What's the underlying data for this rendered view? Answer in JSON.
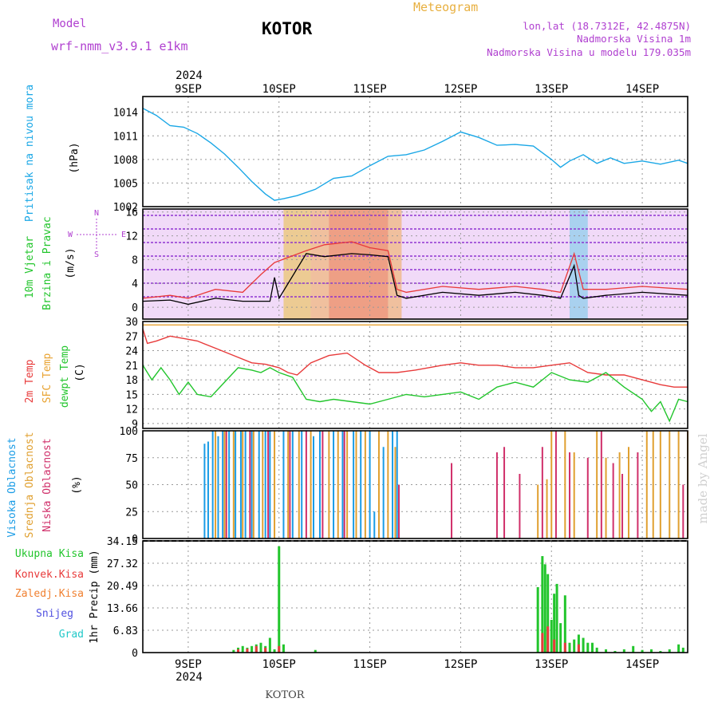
{
  "header": {
    "model_label": "Model",
    "model_name": "wrf-nmm_v3.9.1 e1km",
    "station": "KOTOR",
    "meteogram": "Meteogram",
    "lonlat": "lon,lat (18.7312E, 42.4875N)",
    "elevation": "Nadmorska Visina 1m",
    "model_elevation": "Nadmorska Visina u modelu 179.035m",
    "watermark": "made by Angel",
    "footer_station": "KOTOR"
  },
  "time_axis": {
    "year": "2024",
    "days": [
      "9SEP",
      "10SEP",
      "11SEP",
      "12SEP",
      "13SEP",
      "14SEP"
    ],
    "wind_dir_legend": {
      "n": "N",
      "s": "S",
      "e": "E",
      "w": "W"
    }
  },
  "colors": {
    "pressure": "#1aa7e6",
    "temp2m": "#e83a3a",
    "sfc": "#e8a230",
    "dew": "#22c52c",
    "high_cloud": "#1a9ce6",
    "mid_cloud": "#e0a030",
    "low_cloud": "#d0306a",
    "total_precip": "#22c52c",
    "conv_precip": "#e83a3a",
    "frz_precip": "#f08030",
    "snow": "#5050e0",
    "hail": "#20c8c8",
    "wind_speed": "#000000",
    "wind_gust": "#e83a3a",
    "header_purple": "#b040d0",
    "meteogram_orange": "#e8b040"
  },
  "chart_data": [
    {
      "type": "line",
      "title": "Pritisak na nivou mora",
      "ylabel": "(hPa)",
      "ylim": [
        1002,
        1016
      ],
      "yticks": [
        "1002",
        "1005",
        "1008",
        "1011",
        "1014"
      ],
      "grid": true,
      "x_unit": "days since 9SEP 00Z",
      "series": [
        {
          "name": "Pritisak na nivou mora",
          "x": [
            -0.5,
            -0.35,
            -0.2,
            -0.05,
            0.1,
            0.25,
            0.4,
            0.55,
            0.7,
            0.85,
            0.95,
            1.05,
            1.2,
            1.4,
            1.6,
            1.8,
            2.0,
            2.2,
            2.4,
            2.6,
            2.8,
            3.0,
            3.2,
            3.4,
            3.6,
            3.8,
            4.0,
            4.1,
            4.2,
            4.35,
            4.5,
            4.65,
            4.8,
            5.0,
            5.2,
            5.4,
            5.5
          ],
          "values": [
            1014.5,
            1013.6,
            1012.3,
            1012.1,
            1011.3,
            1010.1,
            1008.7,
            1007.0,
            1005.2,
            1003.6,
            1002.8,
            1003.0,
            1003.4,
            1004.2,
            1005.6,
            1005.9,
            1007.2,
            1008.4,
            1008.6,
            1009.2,
            1010.3,
            1011.5,
            1010.8,
            1009.8,
            1009.9,
            1009.7,
            1008.0,
            1007.0,
            1007.8,
            1008.6,
            1007.5,
            1008.2,
            1007.5,
            1007.8,
            1007.4,
            1007.9,
            1007.5
          ]
        }
      ]
    },
    {
      "type": "line",
      "title": "10m Vjetar Brzina i Pravac",
      "ylabel": "(m/s)",
      "ylim": [
        -2,
        16.5
      ],
      "yticks": [
        "0",
        "4",
        "8",
        "12",
        "16"
      ],
      "grid": true,
      "x_unit": "days since 9SEP 00Z",
      "series": [
        {
          "name": "speed",
          "x": [
            -0.5,
            -0.2,
            0.0,
            0.3,
            0.6,
            0.9,
            0.95,
            1.0,
            1.3,
            1.5,
            1.8,
            2.0,
            2.2,
            2.3,
            2.4,
            2.8,
            3.2,
            3.6,
            3.9,
            4.1,
            4.25,
            4.3,
            4.35,
            4.6,
            5.0,
            5.5
          ],
          "values": [
            1.0,
            1.2,
            0.5,
            1.5,
            1.0,
            1.0,
            5.0,
            1.5,
            9.0,
            8.5,
            9.0,
            8.8,
            8.5,
            2.0,
            1.5,
            2.5,
            2.0,
            2.5,
            2.0,
            1.5,
            7.0,
            2.0,
            1.5,
            2.0,
            2.5,
            2.0
          ]
        },
        {
          "name": "gust",
          "x": [
            -0.5,
            -0.2,
            0.0,
            0.3,
            0.6,
            0.8,
            0.95,
            1.3,
            1.5,
            1.8,
            2.0,
            2.2,
            2.3,
            2.4,
            2.8,
            3.2,
            3.6,
            3.9,
            4.1,
            4.25,
            4.35,
            4.6,
            5.0,
            5.5
          ],
          "values": [
            1.5,
            2.0,
            1.5,
            3.0,
            2.5,
            5.5,
            7.5,
            9.5,
            10.5,
            11.0,
            10.0,
            9.5,
            3.0,
            2.5,
            3.5,
            3.0,
            3.5,
            3.0,
            2.5,
            9.0,
            3.0,
            3.0,
            3.5,
            3.0
          ]
        }
      ]
    },
    {
      "type": "line",
      "title": "2m Temp / SFC Temp / dewpt Temp",
      "ylabel": "(C)",
      "ylim": [
        8,
        30
      ],
      "yticks": [
        "9",
        "12",
        "15",
        "18",
        "21",
        "24",
        "27",
        "30"
      ],
      "grid": true,
      "x_unit": "days since 9SEP 00Z",
      "series": [
        {
          "name": "2m Temp",
          "x": [
            -0.5,
            -0.45,
            -0.35,
            -0.2,
            -0.05,
            0.1,
            0.3,
            0.5,
            0.7,
            0.85,
            1.0,
            1.1,
            1.2,
            1.35,
            1.55,
            1.75,
            1.95,
            2.1,
            2.3,
            2.5,
            2.8,
            3.0,
            3.2,
            3.4,
            3.6,
            3.8,
            4.0,
            4.2,
            4.4,
            4.6,
            4.8,
            5.0,
            5.2,
            5.35,
            5.5
          ],
          "values": [
            28.5,
            25.5,
            26.0,
            27.0,
            26.5,
            26.0,
            24.5,
            23.0,
            21.5,
            21.2,
            20.5,
            19.5,
            19.0,
            21.5,
            23.0,
            23.5,
            21.0,
            19.5,
            19.5,
            20.0,
            21.0,
            21.5,
            21.0,
            21.0,
            20.5,
            20.5,
            21.0,
            21.5,
            19.5,
            19.0,
            19.0,
            18.0,
            17.0,
            16.5,
            16.5
          ]
        },
        {
          "name": "SFC Temp",
          "x": [
            -0.5,
            5.5
          ],
          "values": [
            29.3,
            29.3
          ]
        },
        {
          "name": "dewpt Temp",
          "x": [
            -0.5,
            -0.4,
            -0.3,
            -0.2,
            -0.1,
            0.0,
            0.1,
            0.25,
            0.4,
            0.55,
            0.7,
            0.8,
            0.9,
            1.0,
            1.15,
            1.3,
            1.45,
            1.6,
            1.8,
            2.0,
            2.2,
            2.4,
            2.6,
            2.8,
            3.0,
            3.2,
            3.4,
            3.6,
            3.8,
            4.0,
            4.2,
            4.4,
            4.6,
            4.8,
            5.0,
            5.1,
            5.2,
            5.3,
            5.4,
            5.5
          ],
          "values": [
            21.0,
            18.0,
            20.5,
            18.0,
            15.0,
            17.5,
            15.0,
            14.5,
            17.5,
            20.5,
            20.0,
            19.5,
            20.5,
            19.5,
            18.5,
            14.0,
            13.5,
            14.0,
            13.5,
            13.0,
            14.0,
            15.0,
            14.5,
            15.0,
            15.5,
            14.0,
            16.5,
            17.5,
            16.5,
            19.5,
            18.0,
            17.5,
            19.5,
            16.5,
            14.0,
            11.5,
            13.5,
            9.5,
            14.0,
            13.5
          ]
        }
      ]
    },
    {
      "type": "bar",
      "title": "Visoka Oblacnost / Srednja Oblacnost / Niska Oblacnost",
      "ylabel": "(%)",
      "ylim": [
        0,
        100
      ],
      "yticks": [
        "0",
        "25",
        "50",
        "75",
        "100"
      ],
      "grid": true,
      "x_unit": "days since 9SEP 00Z",
      "series": [
        {
          "name": "Visoka Oblacnost",
          "x": [
            0.18,
            0.22,
            0.27,
            0.33,
            0.38,
            0.45,
            0.52,
            0.58,
            0.63,
            0.7,
            0.78,
            0.85,
            0.9,
            1.05,
            1.15,
            1.25,
            1.38,
            1.45,
            1.6,
            1.7,
            1.82,
            1.9,
            2.0,
            2.05,
            2.15,
            2.25,
            2.3
          ],
          "values": [
            88,
            90,
            100,
            95,
            100,
            100,
            100,
            100,
            100,
            100,
            100,
            100,
            100,
            100,
            100,
            100,
            95,
            100,
            100,
            100,
            100,
            100,
            100,
            25,
            85,
            100,
            100
          ]
        },
        {
          "name": "Srednja Oblacnost",
          "x": [
            0.3,
            0.4,
            0.5,
            0.6,
            0.72,
            0.82,
            0.95,
            1.1,
            1.22,
            1.35,
            1.55,
            1.65,
            1.75,
            1.85,
            1.95,
            2.1,
            2.2,
            2.28,
            3.85,
            3.95,
            4.0,
            4.15,
            4.25,
            4.5,
            4.6,
            4.75,
            4.85,
            5.05,
            5.12,
            5.2,
            5.3,
            5.4,
            5.5
          ],
          "values": [
            100,
            100,
            100,
            100,
            100,
            100,
            100,
            100,
            100,
            100,
            100,
            100,
            100,
            100,
            100,
            100,
            100,
            85,
            50,
            55,
            100,
            100,
            80,
            100,
            75,
            80,
            85,
            100,
            100,
            100,
            100,
            100,
            100
          ]
        },
        {
          "name": "Niska Oblacnost",
          "x": [
            0.42,
            0.68,
            0.88,
            1.12,
            1.3,
            1.48,
            1.72,
            2.32,
            2.9,
            3.4,
            3.48,
            3.65,
            3.9,
            4.05,
            4.2,
            4.4,
            4.55,
            4.68,
            4.78,
            4.95,
            5.45
          ],
          "values": [
            100,
            100,
            100,
            100,
            100,
            100,
            100,
            50,
            70,
            80,
            85,
            60,
            85,
            100,
            80,
            75,
            100,
            70,
            60,
            80,
            50
          ]
        }
      ]
    },
    {
      "type": "bar",
      "title": "1hr Precip",
      "ylabel": "1hr Precip (mm)",
      "ylim": [
        0,
        34.15
      ],
      "yticks": [
        "0",
        "6.83",
        "13.66",
        "20.49",
        "27.32",
        "34.15"
      ],
      "grid": true,
      "x_unit": "days since 9SEP 00Z",
      "series": [
        {
          "name": "Ukupna Kisa",
          "x": [
            0.5,
            0.55,
            0.6,
            0.65,
            0.7,
            0.75,
            0.8,
            0.85,
            0.9,
            0.95,
            1.0,
            1.05,
            1.4,
            3.85,
            3.9,
            3.93,
            3.96,
            4.0,
            4.03,
            4.06,
            4.1,
            4.15,
            4.2,
            4.25,
            4.3,
            4.35,
            4.4,
            4.45,
            4.5,
            4.6,
            4.7,
            4.8,
            4.9,
            5.0,
            5.1,
            5.2,
            5.3,
            5.4,
            5.45
          ],
          "values": [
            0.8,
            1.5,
            2.0,
            1.5,
            2.0,
            2.5,
            3.0,
            2.0,
            4.5,
            1.0,
            32.5,
            2.5,
            0.8,
            20.0,
            29.5,
            27.0,
            24.0,
            10.0,
            18.0,
            21.0,
            9.0,
            17.5,
            3.0,
            4.0,
            5.5,
            4.5,
            3.0,
            3.0,
            1.5,
            1.0,
            0.5,
            1.0,
            2.0,
            0.8,
            1.0,
            0.5,
            1.0,
            2.5,
            1.5
          ]
        },
        {
          "name": "Konvek.Kisa",
          "x": [
            0.55,
            0.65,
            0.75,
            0.85,
            1.0,
            3.9,
            3.96,
            4.03,
            4.15,
            4.3
          ],
          "values": [
            1.0,
            1.2,
            2.0,
            1.5,
            2.0,
            6.0,
            8.0,
            4.0,
            3.0,
            2.5
          ]
        }
      ]
    }
  ],
  "series_labels": {
    "pressure": "Pritisak na nivou mora",
    "pressure_unit": "(hPa)",
    "wind_1": "10m Vjetar",
    "wind_2": "Brzina i Pravac",
    "wind_unit": "(m/s)",
    "temp2m": "2m Temp",
    "sfc": "SFC Temp",
    "dew": "dewpt Temp",
    "temp_unit": "(C)",
    "high_cloud": "Visoka Oblacnost",
    "mid_cloud": "Srednja Oblacnost",
    "low_cloud": "Niska Oblacnost",
    "cloud_unit": "(%)",
    "precip_unit": "1hr Precip (mm)",
    "total_precip": "Ukupna Kisa",
    "conv_precip": "Konvek.Kisa",
    "frz_precip": "Zaledj.Kisa",
    "snow": "Snijeg",
    "hail": "Grad"
  }
}
